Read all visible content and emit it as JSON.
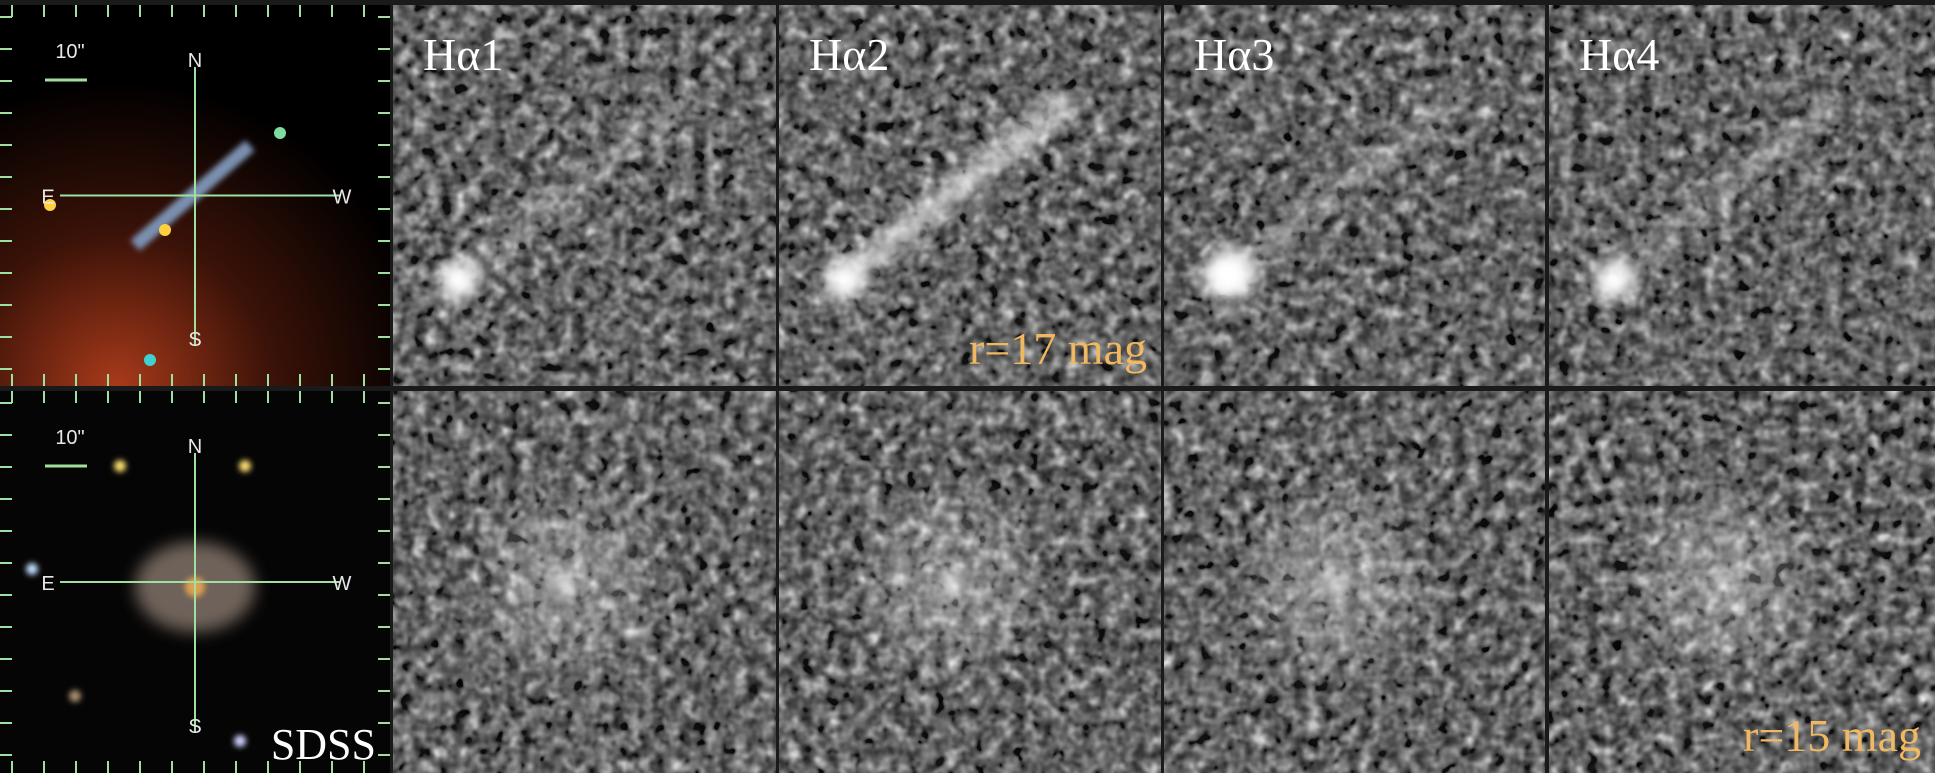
{
  "panels": {
    "column_labels": [
      "Hα1",
      "Hα2",
      "Hα3",
      "Hα4"
    ],
    "rows": [
      {
        "scale_bar": "10\"",
        "compass": [
          "N",
          "E",
          "W",
          "S"
        ],
        "magnitude": "r=17 mag"
      },
      {
        "scale_bar": "10\"",
        "compass": [
          "N",
          "E",
          "W",
          "S"
        ],
        "survey": "SDSS",
        "magnitude": "r=15 mag"
      }
    ]
  }
}
